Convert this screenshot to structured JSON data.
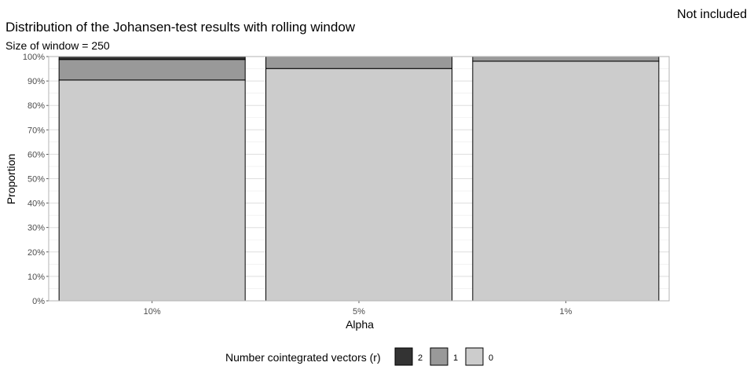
{
  "header": {
    "badge": "Not included"
  },
  "chart_data": {
    "type": "bar",
    "stacked": true,
    "title": "Distribution of the Johansen-test results with rolling window",
    "subtitle": "Size of window = 250",
    "xlabel": "Alpha",
    "ylabel": "Proportion",
    "categories": [
      "10%",
      "5%",
      "1%"
    ],
    "ylim": [
      0,
      1
    ],
    "ytick_labels": [
      "0%",
      "10%",
      "20%",
      "30%",
      "40%",
      "50%",
      "60%",
      "70%",
      "80%",
      "90%",
      "100%"
    ],
    "grid": true,
    "legend_position": "bottom",
    "legend_title": "Number cointegrated vectors (r)",
    "series": [
      {
        "name": "0",
        "color": "#cccccc",
        "values": [
          0.904,
          0.951,
          0.981
        ]
      },
      {
        "name": "1",
        "color": "#999999",
        "values": [
          0.084,
          0.049,
          0.019
        ]
      },
      {
        "name": "2",
        "color": "#333333",
        "values": [
          0.012,
          0.0,
          0.0
        ]
      }
    ],
    "legend_order": [
      "2",
      "1",
      "0"
    ]
  }
}
